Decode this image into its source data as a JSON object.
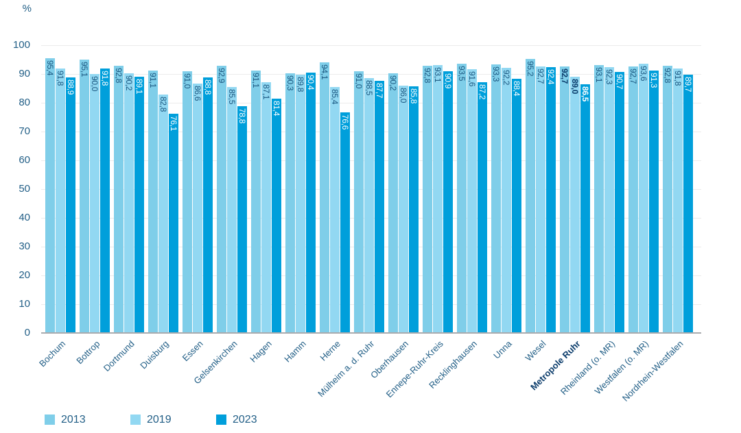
{
  "chart_data": {
    "type": "bar",
    "title": "",
    "unit_label": "%",
    "xlabel": "",
    "ylabel": "%",
    "ylim": [
      0,
      100
    ],
    "yticks": [
      0,
      10,
      20,
      30,
      40,
      50,
      60,
      70,
      80,
      90,
      100
    ],
    "grid": "horizontal",
    "legend_position": "bottom",
    "decimal_separator": ",",
    "emphasized_category": "Metropole Ruhr",
    "categories": [
      "Bochum",
      "Bottrop",
      "Dortmund",
      "Duisburg",
      "Essen",
      "Gelsenkirchen",
      "Hagen",
      "Hamm",
      "Herne",
      "Mülheim a. d. Ruhr",
      "Oberhausen",
      "Ennepe-Ruhr-Kreis",
      "Recklinghausen",
      "Unna",
      "Wesel",
      "Metropole Ruhr",
      "Rheinland (o. MR)",
      "Westfalen (o. MR)",
      "Nordrhein-Westfalen"
    ],
    "series": [
      {
        "name": "2013",
        "color": "#7FCEE9",
        "values": [
          95.4,
          95.1,
          92.8,
          91.1,
          91.0,
          92.9,
          91.1,
          90.3,
          94.1,
          91.0,
          90.2,
          92.8,
          93.5,
          93.3,
          95.2,
          92.7,
          93.1,
          92.7,
          92.8
        ]
      },
      {
        "name": "2019",
        "color": "#92D8F2",
        "values": [
          91.8,
          90.0,
          90.2,
          82.8,
          86.6,
          85.5,
          87.1,
          89.8,
          85.4,
          88.5,
          86.0,
          93.1,
          91.6,
          92.2,
          92.7,
          89.0,
          92.3,
          93.6,
          91.8
        ]
      },
      {
        "name": "2023",
        "color": "#009FDB",
        "values": [
          88.9,
          91.8,
          89.1,
          76.1,
          88.8,
          78.8,
          81.4,
          90.4,
          76.6,
          87.7,
          85.8,
          90.9,
          87.2,
          88.4,
          92.4,
          86.5,
          90.7,
          91.3,
          89.7
        ]
      }
    ]
  },
  "colors": {
    "axis_text": "#215E86",
    "value_label": "#1A567F",
    "value_label_emphasis": "#0B3C6B",
    "value_label_on_dark": "#FFFFFF",
    "x_label": "#215E86",
    "x_label_emphasis": "#0B3C6B",
    "gridline": "#EBEBEB",
    "axis_line": "#A9ABAE",
    "background": "#FFFFFF"
  }
}
